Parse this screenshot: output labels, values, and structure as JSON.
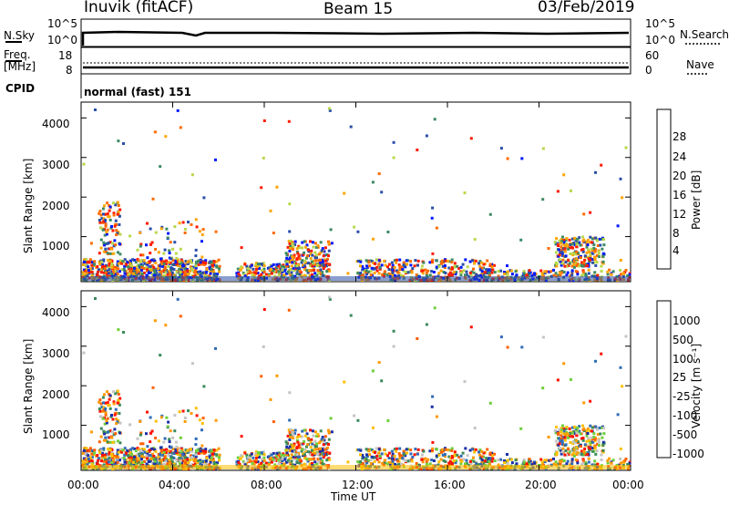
{
  "header": {
    "station": "Inuvik (fitACF)",
    "beam": "Beam 15",
    "date": "03/Feb/2019"
  },
  "status_panels": {
    "nsky_label": "N.Sky",
    "nsearch_label": "N.Search",
    "nsky_ticks": [
      "10^5",
      "10^0"
    ],
    "nsearch_ticks": [
      "10^5",
      "10^0"
    ],
    "freq_label_1": "Freq.",
    "freq_label_2": "[MHz]",
    "freq_ticks": [
      "18",
      "8"
    ],
    "nave_label": "Nave",
    "nave_ticks": [
      "60",
      "0"
    ],
    "cpid_label": "CPID",
    "cpid_text": "normal (fast) 151"
  },
  "chart_data": [
    {
      "type": "heatmap",
      "panel": "power",
      "ylabel": "Slant Range [km]",
      "yticks": [
        "1000",
        "2000",
        "3000",
        "4000"
      ],
      "colorbar_label": "Power [dB]",
      "colorbar_ticks": [
        "4",
        "8",
        "12",
        "16",
        "20",
        "24",
        "28"
      ],
      "colors": [
        "#0018ff",
        "#2a4ea8",
        "#3c8a64",
        "#b8d84a",
        "#ffa500",
        "#ff6a00",
        "#ff1a00"
      ]
    },
    {
      "type": "heatmap",
      "panel": "velocity",
      "ylabel": "Slant Range [km]",
      "yticks": [
        "1000",
        "2000",
        "3000",
        "4000"
      ],
      "colorbar_label": "Velocity [m s⁻¹]",
      "colorbar_ticks": [
        "1000",
        "500",
        "100",
        "25",
        "-25",
        "-100",
        "-500",
        "-1000"
      ],
      "colors": [
        "#1a2ea8",
        "#2f6cb8",
        "#3b8a5a",
        "#6ecf3a",
        "#c4c4c4",
        "#ffc000",
        "#ff9a00",
        "#ff6000",
        "#ff1000"
      ]
    }
  ],
  "x_axis": {
    "ticks": [
      "00:00",
      "04:00",
      "08:00",
      "12:00",
      "16:00",
      "20:00",
      "00:00"
    ],
    "label": "Time UT"
  }
}
